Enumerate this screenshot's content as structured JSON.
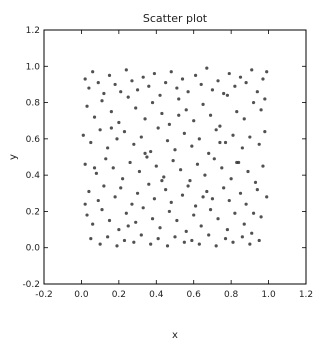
{
  "chart_data": {
    "type": "scatter",
    "title": "Scatter plot",
    "xlabel": "x",
    "ylabel": "y",
    "xlim": [
      -0.2,
      1.2
    ],
    "ylim": [
      -0.2,
      1.2
    ],
    "xticks": [
      "-0.2",
      "0.0",
      "0.2",
      "0.4",
      "0.6",
      "0.8",
      "1.0",
      "1.2"
    ],
    "yticks": [
      "-0.2",
      "0.0",
      "0.2",
      "0.4",
      "0.6",
      "0.8",
      "1.0",
      "1.2"
    ],
    "grid": false,
    "legend": "none",
    "marker_color": "#333333",
    "series": [
      {
        "x": [
          0.02,
          0.04,
          0.06,
          0.09,
          0.12,
          0.15,
          0.18,
          0.21,
          0.24,
          0.27,
          0.3,
          0.33,
          0.36,
          0.39,
          0.42,
          0.45,
          0.48,
          0.51,
          0.54,
          0.57,
          0.61,
          0.64,
          0.67,
          0.7,
          0.73,
          0.76,
          0.79,
          0.82,
          0.85,
          0.88,
          0.91,
          0.94,
          0.97,
          0.99,
          0.03,
          0.07,
          0.11,
          0.16,
          0.2,
          0.25,
          0.29,
          0.34,
          0.38,
          0.43,
          0.47,
          0.52,
          0.56,
          0.6,
          0.65,
          0.69,
          0.74,
          0.78,
          0.83,
          0.87,
          0.92,
          0.96,
          0.01,
          0.05,
          0.1,
          0.14,
          0.19,
          0.23,
          0.28,
          0.32,
          0.37,
          0.41,
          0.46,
          0.5,
          0.55,
          0.59,
          0.63,
          0.68,
          0.72,
          0.77,
          0.81,
          0.86,
          0.9,
          0.95,
          0.98,
          0.02,
          0.08,
          0.13,
          0.17,
          0.22,
          0.26,
          0.31,
          0.35,
          0.4,
          0.44,
          0.49,
          0.53,
          0.58,
          0.62,
          0.66,
          0.71,
          0.75,
          0.8,
          0.84,
          0.89,
          0.93,
          0.97,
          0.04,
          0.09,
          0.12,
          0.18,
          0.21,
          0.27,
          0.3,
          0.36,
          0.39,
          0.45,
          0.48,
          0.54,
          0.57,
          0.61,
          0.67,
          0.7,
          0.76,
          0.79,
          0.85,
          0.88,
          0.94,
          0.99,
          0.03,
          0.06,
          0.11,
          0.15,
          0.2,
          0.24,
          0.29,
          0.33,
          0.38,
          0.42,
          0.47,
          0.51,
          0.56,
          0.6,
          0.64,
          0.69,
          0.73,
          0.78,
          0.82,
          0.87,
          0.91,
          0.96,
          0.05,
          0.1,
          0.14,
          0.19,
          0.23,
          0.28,
          0.32,
          0.37,
          0.41,
          0.46,
          0.5,
          0.55,
          0.59,
          0.63,
          0.68,
          0.72,
          0.77,
          0.81,
          0.86,
          0.9,
          0.95,
          0.02,
          0.07,
          0.16,
          0.25,
          0.34,
          0.43,
          0.52,
          0.65,
          0.74,
          0.83,
          0.92,
          0.98
        ],
        "y": [
          0.93,
          0.88,
          0.97,
          0.91,
          0.85,
          0.95,
          0.9,
          0.86,
          0.98,
          0.92,
          0.87,
          0.94,
          0.89,
          0.96,
          0.84,
          0.91,
          0.97,
          0.88,
          0.93,
          0.86,
          0.95,
          0.9,
          0.99,
          0.87,
          0.92,
          0.85,
          0.96,
          0.89,
          0.94,
          0.91,
          0.98,
          0.86,
          0.93,
          0.97,
          0.78,
          0.72,
          0.81,
          0.75,
          0.69,
          0.83,
          0.77,
          0.71,
          0.8,
          0.74,
          0.68,
          0.82,
          0.76,
          0.7,
          0.79,
          0.73,
          0.67,
          0.84,
          0.75,
          0.71,
          0.8,
          0.76,
          0.62,
          0.58,
          0.65,
          0.55,
          0.6,
          0.64,
          0.57,
          0.61,
          0.53,
          0.66,
          0.59,
          0.54,
          0.63,
          0.56,
          0.6,
          0.52,
          0.65,
          0.58,
          0.62,
          0.55,
          0.61,
          0.57,
          0.64,
          0.46,
          0.41,
          0.49,
          0.44,
          0.38,
          0.47,
          0.42,
          0.5,
          0.45,
          0.39,
          0.48,
          0.43,
          0.37,
          0.46,
          0.4,
          0.49,
          0.44,
          0.38,
          0.47,
          0.42,
          0.36,
          0.45,
          0.31,
          0.26,
          0.34,
          0.28,
          0.33,
          0.24,
          0.3,
          0.35,
          0.27,
          0.32,
          0.25,
          0.29,
          0.34,
          0.23,
          0.31,
          0.27,
          0.33,
          0.26,
          0.3,
          0.24,
          0.32,
          0.28,
          0.18,
          0.13,
          0.21,
          0.15,
          0.1,
          0.19,
          0.14,
          0.22,
          0.16,
          0.11,
          0.2,
          0.15,
          0.09,
          0.18,
          0.12,
          0.21,
          0.16,
          0.1,
          0.19,
          0.13,
          0.08,
          0.17,
          0.05,
          0.02,
          0.06,
          0.01,
          0.04,
          0.03,
          0.07,
          0.02,
          0.05,
          0.01,
          0.06,
          0.03,
          0.04,
          0.02,
          0.07,
          0.01,
          0.05,
          0.03,
          0.06,
          0.02,
          0.04,
          0.24,
          0.44,
          0.66,
          0.12,
          0.52,
          0.37,
          0.73,
          0.28,
          0.58,
          0.47,
          0.19,
          0.82
        ]
      }
    ]
  }
}
